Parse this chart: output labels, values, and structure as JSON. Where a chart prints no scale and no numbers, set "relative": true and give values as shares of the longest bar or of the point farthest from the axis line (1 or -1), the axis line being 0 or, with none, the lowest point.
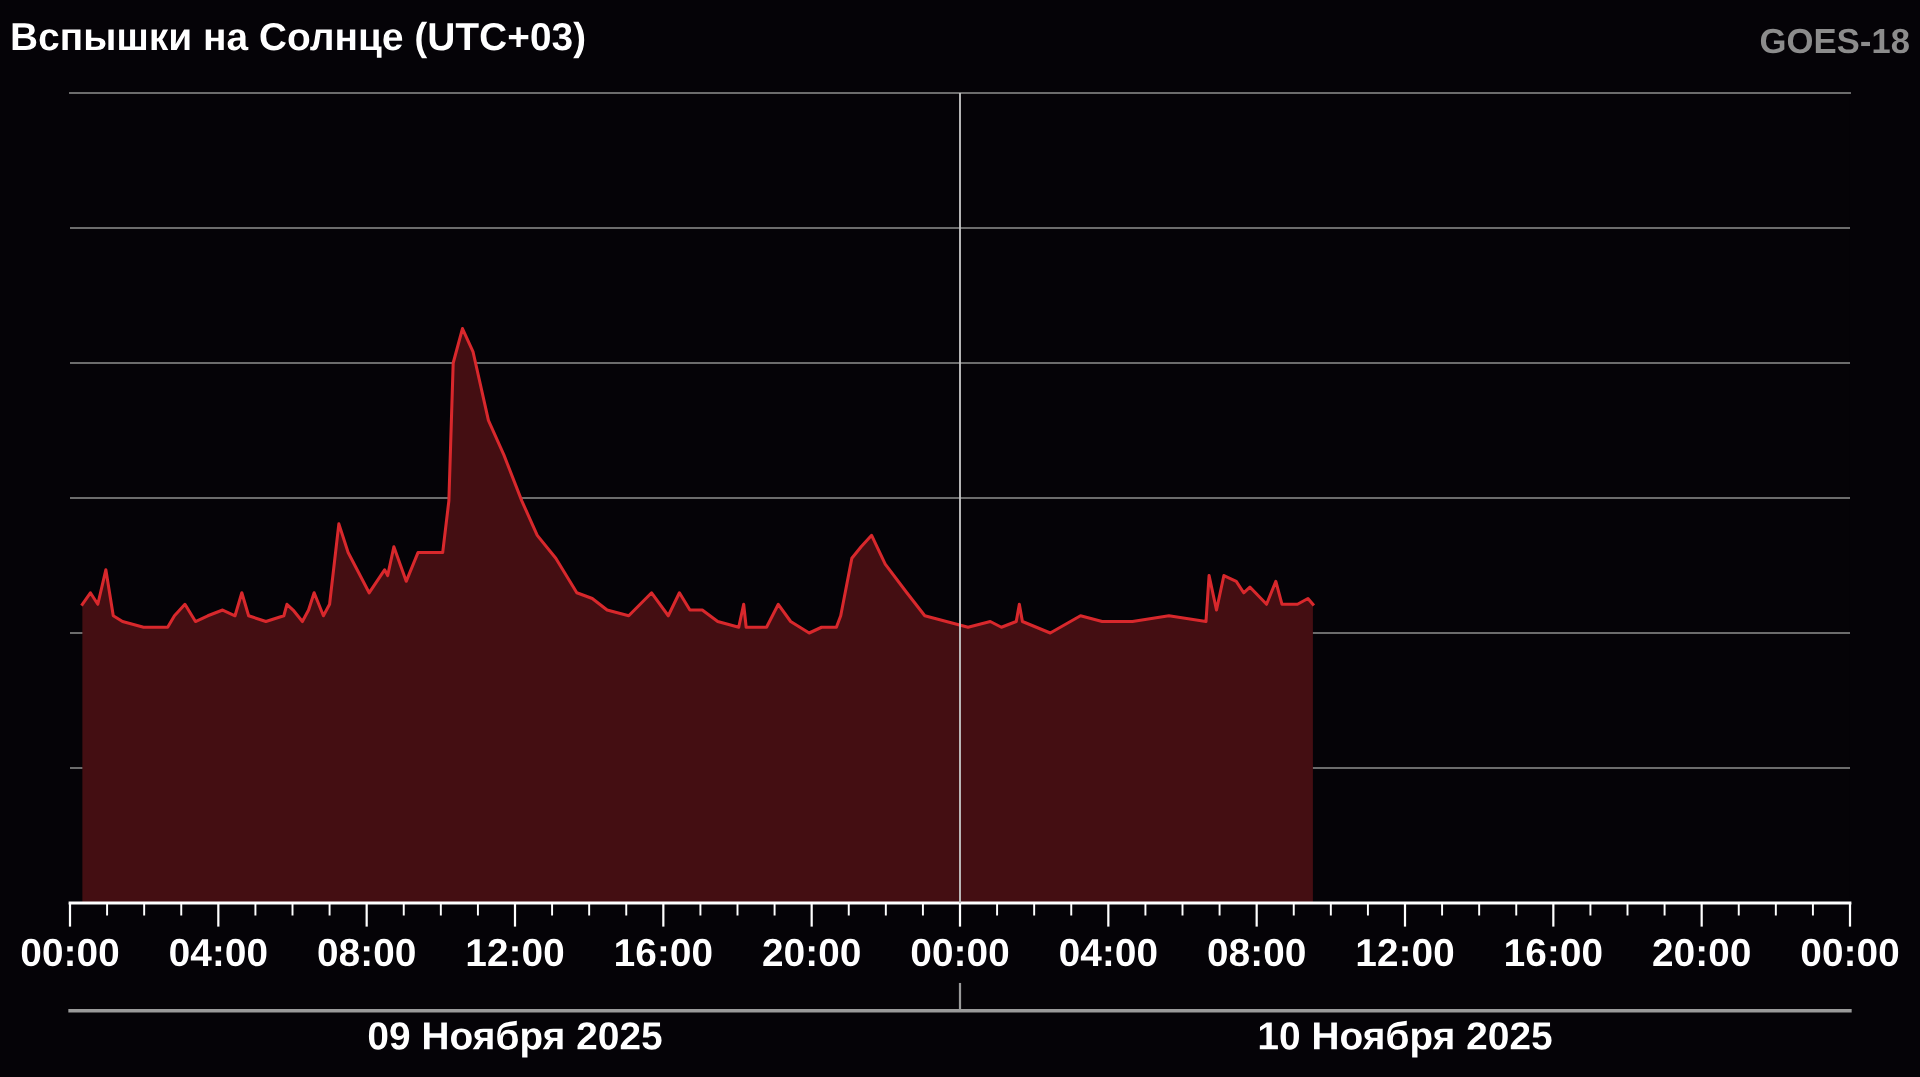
{
  "chart_data": {
    "type": "area",
    "title": "Вспышки на Солнце (UTC+03)",
    "relative": true,
    "grid": "y",
    "annotations": [
      "GOES-18",
      "09 Ноября 2025",
      "10 Ноября 2025"
    ],
    "xlim": [
      "2025-11-09T00:00",
      "2025-11-11T00:00"
    ],
    "xticks": [
      {
        "value": "2025-11-09T00:00",
        "label": "00:00"
      },
      {
        "value": "2025-11-09T01:00",
        "label": null
      },
      {
        "value": "2025-11-09T02:00",
        "label": null
      },
      {
        "value": "2025-11-09T03:00",
        "label": null
      },
      {
        "value": "2025-11-09T04:00",
        "label": "04:00"
      },
      {
        "value": "2025-11-09T05:00",
        "label": null
      },
      {
        "value": "2025-11-09T06:00",
        "label": null
      },
      {
        "value": "2025-11-09T07:00",
        "label": null
      },
      {
        "value": "2025-11-09T08:00",
        "label": "08:00"
      },
      {
        "value": "2025-11-09T09:00",
        "label": null
      },
      {
        "value": "2025-11-09T10:00",
        "label": null
      },
      {
        "value": "2025-11-09T11:00",
        "label": null
      },
      {
        "value": "2025-11-09T12:00",
        "label": "12:00"
      },
      {
        "value": "2025-11-09T13:00",
        "label": null
      },
      {
        "value": "2025-11-09T14:00",
        "label": null
      },
      {
        "value": "2025-11-09T15:00",
        "label": null
      },
      {
        "value": "2025-11-09T16:00",
        "label": "16:00"
      },
      {
        "value": "2025-11-09T17:00",
        "label": null
      },
      {
        "value": "2025-11-09T18:00",
        "label": null
      },
      {
        "value": "2025-11-09T19:00",
        "label": null
      },
      {
        "value": "2025-11-09T20:00",
        "label": "20:00"
      },
      {
        "value": "2025-11-09T21:00",
        "label": null
      },
      {
        "value": "2025-11-09T22:00",
        "label": null
      },
      {
        "value": "2025-11-09T23:00",
        "label": null
      },
      {
        "value": "2025-11-10T00:00",
        "label": "00:00"
      },
      {
        "value": "2025-11-10T01:00",
        "label": null
      },
      {
        "value": "2025-11-10T02:00",
        "label": null
      },
      {
        "value": "2025-11-10T03:00",
        "label": null
      },
      {
        "value": "2025-11-10T04:00",
        "label": "04:00"
      },
      {
        "value": "2025-11-10T05:00",
        "label": null
      },
      {
        "value": "2025-11-10T06:00",
        "label": null
      },
      {
        "value": "2025-11-10T07:00",
        "label": null
      },
      {
        "value": "2025-11-10T08:00",
        "label": "08:00"
      },
      {
        "value": "2025-11-10T09:00",
        "label": null
      },
      {
        "value": "2025-11-10T10:00",
        "label": null
      },
      {
        "value": "2025-11-10T11:00",
        "label": null
      },
      {
        "value": "2025-11-10T12:00",
        "label": "12:00"
      },
      {
        "value": "2025-11-10T13:00",
        "label": null
      },
      {
        "value": "2025-11-10T14:00",
        "label": null
      },
      {
        "value": "2025-11-10T15:00",
        "label": null
      },
      {
        "value": "2025-11-10T16:00",
        "label": "16:00"
      },
      {
        "value": "2025-11-10T17:00",
        "label": null
      },
      {
        "value": "2025-11-10T18:00",
        "label": null
      },
      {
        "value": "2025-11-10T19:00",
        "label": null
      },
      {
        "value": "2025-11-10T20:00",
        "label": "20:00"
      },
      {
        "value": "2025-11-10T21:00",
        "label": null
      },
      {
        "value": "2025-11-10T22:00",
        "label": null
      },
      {
        "value": "2025-11-10T23:00",
        "label": null
      },
      {
        "value": "2025-11-11T00:00",
        "label": "00:00"
      }
    ],
    "ref_lines": [
      {
        "axis": "x",
        "value": "2025-11-10T00:00",
        "color": "#c8c8c8"
      }
    ],
    "x": [
      "2025-11-09T00:20",
      "2025-11-09T00:33",
      "2025-11-09T00:45",
      "2025-11-09T00:58",
      "2025-11-09T01:10",
      "2025-11-09T01:25",
      "2025-11-09T01:59",
      "2025-11-09T02:38",
      "2025-11-09T02:49",
      "2025-11-09T03:06",
      "2025-11-09T03:23",
      "2025-11-09T03:43",
      "2025-11-09T04:07",
      "2025-11-09T04:27",
      "2025-11-09T04:38",
      "2025-11-09T04:49",
      "2025-11-09T05:17",
      "2025-11-09T05:46",
      "2025-11-09T05:51",
      "2025-11-09T06:01",
      "2025-11-09T06:16",
      "2025-11-09T06:26",
      "2025-11-09T06:35",
      "2025-11-09T06:50",
      "2025-11-09T07:00",
      "2025-11-09T07:15",
      "2025-11-09T07:30",
      "2025-11-09T08:04",
      "2025-11-09T08:29",
      "2025-11-09T08:34",
      "2025-11-09T08:44",
      "2025-11-09T09:04",
      "2025-11-09T09:23",
      "2025-11-09T09:38",
      "2025-11-09T10:03",
      "2025-11-09T10:13",
      "2025-11-09T10:20",
      "2025-11-09T10:35",
      "2025-11-09T10:52",
      "2025-11-09T11:17",
      "2025-11-09T11:42",
      "2025-11-09T12:11",
      "2025-11-09T12:36",
      "2025-11-09T13:06",
      "2025-11-09T13:40",
      "2025-11-09T14:05",
      "2025-11-09T14:29",
      "2025-11-09T15:04",
      "2025-11-09T15:41",
      "2025-11-09T16:08",
      "2025-11-09T16:26",
      "2025-11-09T16:43",
      "2025-11-09T17:03",
      "2025-11-09T17:28",
      "2025-11-09T18:02",
      "2025-11-09T18:10",
      "2025-11-09T18:14",
      "2025-11-09T18:47",
      "2025-11-09T19:06",
      "2025-11-09T19:26",
      "2025-11-09T19:56",
      "2025-11-09T20:16",
      "2025-11-09T20:40",
      "2025-11-09T20:47",
      "2025-11-09T21:05",
      "2025-11-09T21:20",
      "2025-11-09T21:37",
      "2025-11-09T21:59",
      "2025-11-09T22:34",
      "2025-11-09T23:03",
      "2025-11-09T23:38",
      "2025-11-10T00:13",
      "2025-11-10T00:49",
      "2025-11-10T01:07",
      "2025-11-10T01:31",
      "2025-11-10T01:36",
      "2025-11-10T01:41",
      "2025-11-10T02:26",
      "2025-11-10T03:15",
      "2025-11-10T03:50",
      "2025-11-10T04:39",
      "2025-11-10T05:38",
      "2025-11-10T06:38",
      "2025-11-10T06:43",
      "2025-11-10T06:55",
      "2025-11-10T07:07",
      "2025-11-10T07:27",
      "2025-11-10T07:39",
      "2025-11-10T07:49",
      "2025-11-10T08:16",
      "2025-11-10T08:31",
      "2025-11-10T08:41",
      "2025-11-10T09:06",
      "2025-11-10T09:23",
      "2025-11-10T09:31"
    ],
    "series": [
      {
        "color": "#d8282c",
        "values": [
          0.52,
          0.54,
          0.52,
          0.58,
          0.5,
          0.49,
          0.48,
          0.48,
          0.5,
          0.52,
          0.49,
          0.5,
          0.51,
          0.5,
          0.54,
          0.5,
          0.49,
          0.5,
          0.52,
          0.51,
          0.49,
          0.51,
          0.54,
          0.5,
          0.52,
          0.66,
          0.61,
          0.54,
          0.58,
          0.57,
          0.62,
          0.56,
          0.61,
          0.61,
          0.61,
          0.7,
          0.94,
          1.0,
          0.96,
          0.84,
          0.78,
          0.7,
          0.64,
          0.6,
          0.54,
          0.53,
          0.51,
          0.5,
          0.54,
          0.5,
          0.54,
          0.51,
          0.51,
          0.49,
          0.48,
          0.52,
          0.48,
          0.48,
          0.52,
          0.49,
          0.47,
          0.48,
          0.48,
          0.5,
          0.6,
          0.62,
          0.64,
          0.59,
          0.54,
          0.5,
          0.49,
          0.48,
          0.49,
          0.48,
          0.49,
          0.52,
          0.49,
          0.47,
          0.5,
          0.49,
          0.49,
          0.5,
          0.49,
          0.57,
          0.51,
          0.57,
          0.56,
          0.54,
          0.55,
          0.52,
          0.56,
          0.52,
          0.52,
          0.53,
          0.52
        ]
      }
    ]
  }
}
